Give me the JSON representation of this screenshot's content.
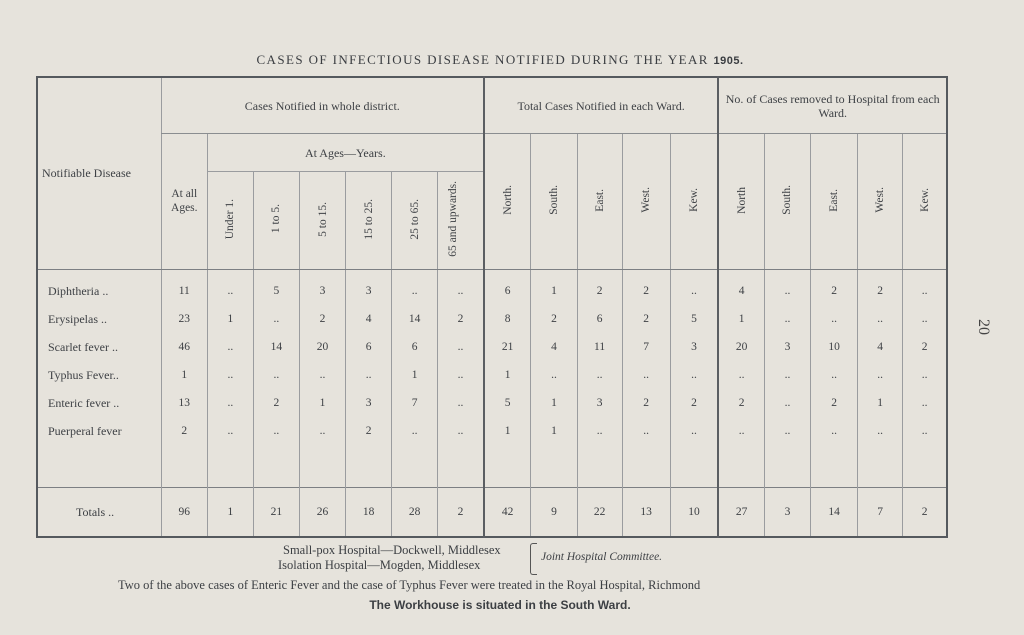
{
  "title": "CASES OF INFECTIOUS DISEASE NOTIFIED DURING THE YEAR",
  "year": "1905.",
  "headers": {
    "disease": "Notifiable Disease",
    "whole_district": "Cases Notified in whole district.",
    "total_cases": "Total Cases Notified in each Ward.",
    "removed": "No. of Cases removed to Hospital from each Ward.",
    "at_all_ages": "At all Ages.",
    "at_ages": "At Ages—Years.",
    "age_groups": [
      "Under 1.",
      "1 to 5.",
      "5 to 15.",
      "15 to 25.",
      "25 to 65.",
      "65 and upwards."
    ],
    "wards_total": [
      "North.",
      "South.",
      "East.",
      "West.",
      "Kew."
    ],
    "wards_removed": [
      "North",
      "South.",
      "East.",
      "West.",
      "Kew."
    ]
  },
  "rows": [
    {
      "disease": "Diphtheria ..",
      "values": [
        "11",
        "..",
        "5",
        "3",
        "3",
        "..",
        "..",
        "6",
        "1",
        "2",
        "2",
        "..",
        "4",
        "..",
        "2",
        "2",
        ".."
      ]
    },
    {
      "disease": "Erysipelas ..",
      "values": [
        "23",
        "1",
        "..",
        "2",
        "4",
        "14",
        "2",
        "8",
        "2",
        "6",
        "2",
        "5",
        "1",
        "..",
        "..",
        "..",
        ".."
      ]
    },
    {
      "disease": "Scarlet fever ..",
      "values": [
        "46",
        "..",
        "14",
        "20",
        "6",
        "6",
        "..",
        "21",
        "4",
        "11",
        "7",
        "3",
        "20",
        "3",
        "10",
        "4",
        "2"
      ]
    },
    {
      "disease": "Typhus Fever..",
      "values": [
        "1",
        "..",
        "..",
        "..",
        "..",
        "1",
        "..",
        "1",
        "..",
        "..",
        "..",
        "..",
        "..",
        "..",
        "..",
        "..",
        ".."
      ]
    },
    {
      "disease": "Enteric fever ..",
      "values": [
        "13",
        "..",
        "2",
        "1",
        "3",
        "7",
        "..",
        "5",
        "1",
        "3",
        "2",
        "2",
        "2",
        "..",
        "2",
        "1",
        ".."
      ]
    },
    {
      "disease": "Puerperal fever",
      "values": [
        "2",
        "..",
        "..",
        "..",
        "2",
        "..",
        "..",
        "1",
        "1",
        "..",
        "..",
        "..",
        "..",
        "..",
        "..",
        "..",
        ".."
      ]
    }
  ],
  "totals": {
    "label": "Totals ..",
    "values": [
      "96",
      "1",
      "21",
      "26",
      "18",
      "28",
      "2",
      "42",
      "9",
      "22",
      "13",
      "10",
      "27",
      "3",
      "14",
      "7",
      "2"
    ]
  },
  "page_number": "20",
  "footer": {
    "smallpox": "Small-pox Hospital—Dockwell, Middlesex",
    "isolation": "Isolation Hospital—Mogden, Middlesex",
    "committee": "Joint Hospital Committee.",
    "note1": "Two of the above cases of Enteric Fever and the case of Typhus Fever were treated in the Royal Hospital, Richmond",
    "note2": "The Workhouse is situated in the South Ward."
  }
}
